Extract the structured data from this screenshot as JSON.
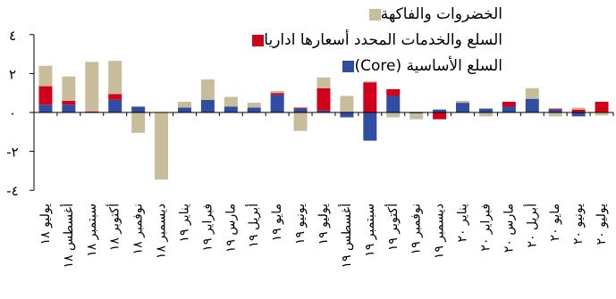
{
  "chart_data": {
    "type": "bar",
    "stacked": true,
    "title": "",
    "xlabel": "",
    "ylabel": "",
    "ylim": [
      -4,
      4
    ],
    "yticks": [
      4,
      2,
      0,
      -2,
      -4
    ],
    "ytick_labels": [
      "٤",
      "٢",
      "٠",
      "-٢",
      "-٤"
    ],
    "grid": false,
    "legend_position": "top",
    "categories": [
      "يوليو ١٨",
      "أغسطس ١٨",
      "سبتمبر ١٨",
      "أكتوبر ١٨",
      "نوفمبر ١٨",
      "ديسمبر ١٨",
      "يناير ١٩",
      "فبراير ١٩",
      "مارس ١٩",
      "أبريل ١٩",
      "مايو ١٩",
      "يونيو ١٩",
      "يوليو ١٩",
      "أغسطس ١٩",
      "سبتمبر ١٩",
      "أكتوبر ١٩",
      "نوفمبر ١٩",
      "ديسمبر ١٩",
      "يناير ٢٠",
      "فبراير ٢٠",
      "مارس ٢٠",
      "أبريل ٢٠",
      "مايو ٢٠",
      "يونيو ٢٠",
      "يوليو ٢٠"
    ],
    "series": [
      {
        "name": "السلع الأساسية (Core)",
        "color": "#2f4ea3",
        "values": [
          0.4,
          0.4,
          0,
          0.65,
          0.3,
          0,
          0.25,
          0.65,
          0.3,
          0.25,
          0.9,
          0.2,
          0.1,
          -0.25,
          -1.45,
          0.85,
          -0.05,
          0.15,
          0.5,
          0.2,
          0.3,
          0.7,
          0.15,
          -0.2,
          0
        ]
      },
      {
        "name": "السلع والخدمات المحدد أسعارها اداريا",
        "color": "#d0021b",
        "values": [
          0.95,
          0.2,
          0.05,
          0.3,
          0,
          0,
          0,
          0,
          0,
          0,
          0.1,
          0.05,
          1.15,
          0,
          1.55,
          0.35,
          0,
          -0.35,
          0,
          0,
          0.25,
          0,
          0.05,
          0.15,
          0.55
        ]
      },
      {
        "name": "الخضروات والفاكهة",
        "color": "#c8bd9b",
        "values": [
          1.05,
          1.25,
          2.55,
          1.7,
          -1.05,
          -3.45,
          0.3,
          1.05,
          0.5,
          0.25,
          0.1,
          -0.95,
          0.55,
          0.85,
          0.05,
          -0.25,
          -0.3,
          0,
          0.1,
          -0.2,
          0,
          0.55,
          -0.2,
          0.1,
          -0.15
        ]
      }
    ]
  },
  "legend": {
    "items": [
      {
        "label": "الخضروات والفاكهة",
        "color": "#c8bd9b"
      },
      {
        "label": "السلع والخدمات المحدد أسعارها اداريا",
        "color": "#d0021b"
      },
      {
        "label": "السلع الأساسية (Core)",
        "color": "#2f4ea3"
      }
    ]
  }
}
